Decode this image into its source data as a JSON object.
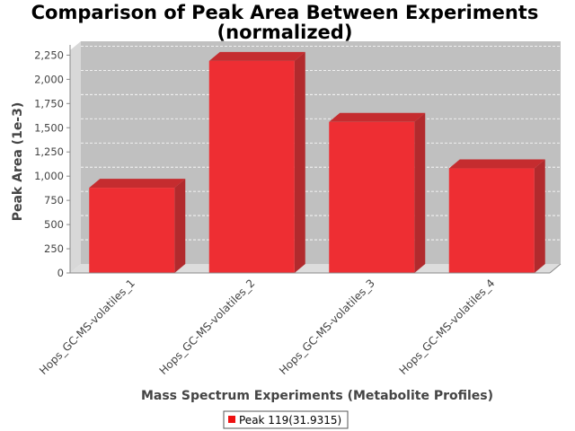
{
  "chart_data": {
    "type": "bar",
    "title_line1": "Comparison of Peak Area Between Experiments",
    "title_line2": "(normalized)",
    "xlabel": "Mass Spectrum Experiments (Metabolite Profiles)",
    "ylabel": "Peak Area (1e-3)",
    "categories": [
      "Hops_GC-MS-volatiles_1",
      "Hops_GC-MS-volatiles_2",
      "Hops_GC-MS-volatiles_3",
      "Hops_GC-MS-volatiles_4"
    ],
    "series": [
      {
        "name": "Peak 119(31.9315)",
        "values": [
          880,
          2190,
          1560,
          1080
        ]
      }
    ],
    "ylim": [
      0,
      2300
    ],
    "yticks": [
      0,
      250,
      500,
      750,
      1000,
      1250,
      1500,
      1750,
      2000,
      2250
    ],
    "ytick_labels": [
      "0",
      "250",
      "500",
      "750",
      "1,000",
      "1,250",
      "1,500",
      "1,750",
      "2,000",
      "2,250"
    ],
    "grid": true,
    "legend_position": "bottom",
    "colors": {
      "bar_front": "#ee2e33",
      "bar_side": "#b22a2d",
      "bar_top": "#c52c2f",
      "plot_back": "#c0c0c0",
      "plot_floor": "#dddddd",
      "plot_side": "#d8d8d8",
      "legend_swatch": "#ee1111"
    }
  }
}
